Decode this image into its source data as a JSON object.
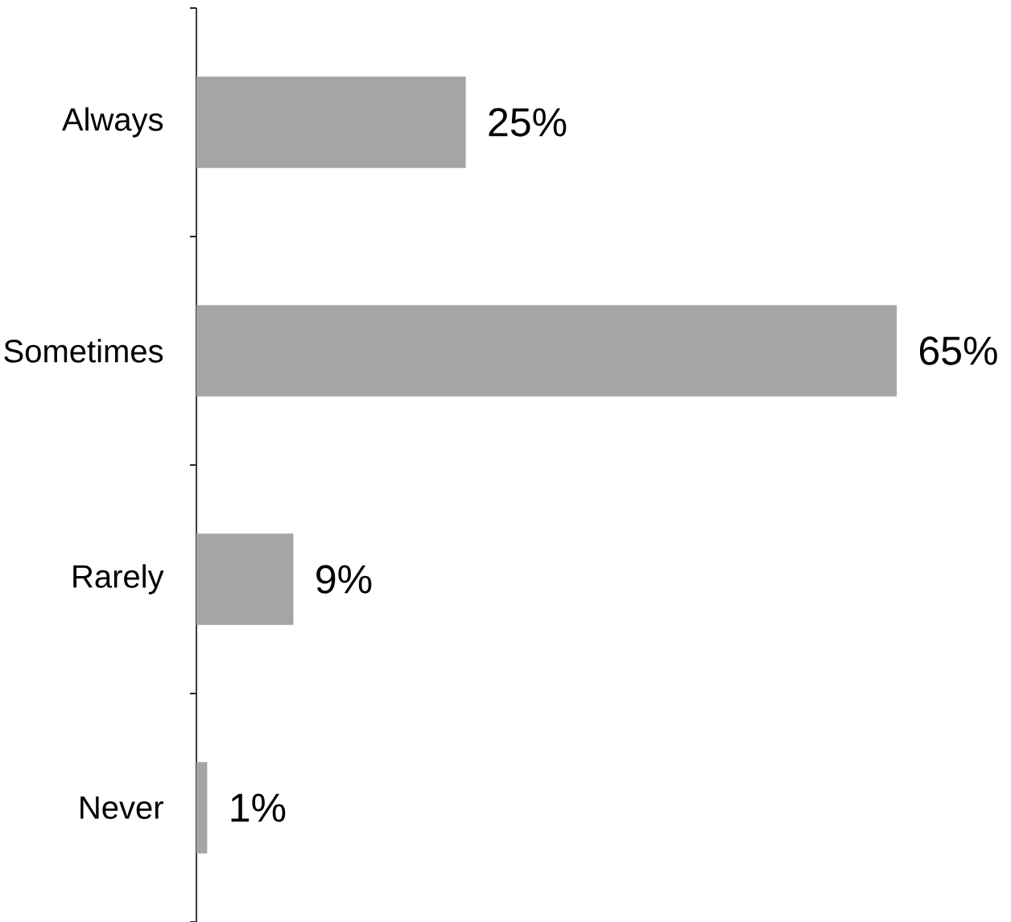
{
  "chart_data": {
    "type": "bar",
    "orientation": "horizontal",
    "categories": [
      "Always",
      "Sometimes",
      "Rarely",
      "Never"
    ],
    "values": [
      25,
      65,
      9,
      1
    ],
    "value_labels": [
      "25%",
      "65%",
      "9%",
      "1%"
    ],
    "color": "#a5a5a5"
  }
}
